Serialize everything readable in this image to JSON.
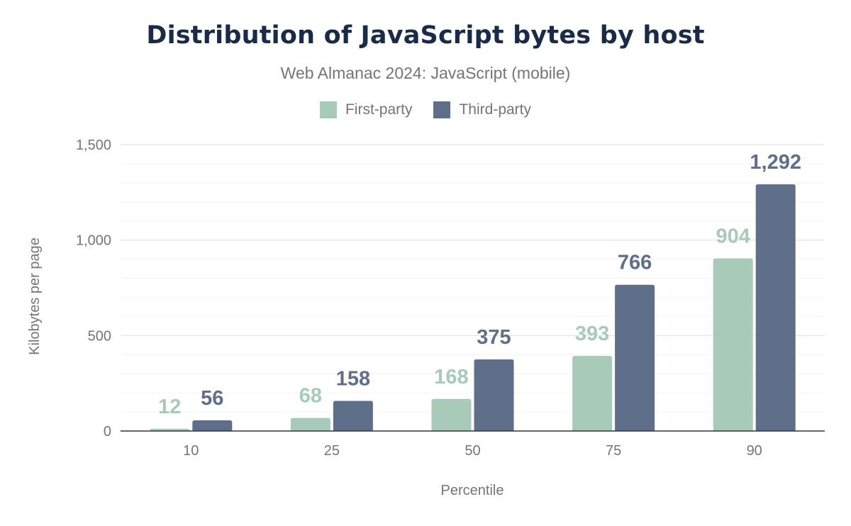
{
  "chart_data": {
    "type": "bar",
    "title": "Distribution of JavaScript bytes by host",
    "subtitle": "Web Almanac 2024: JavaScript (mobile)",
    "xlabel": "Percentile",
    "ylabel": "Kilobytes per page",
    "categories": [
      "10",
      "25",
      "50",
      "75",
      "90"
    ],
    "series": [
      {
        "name": "First-party",
        "color": "#a8cab9",
        "values": [
          12,
          68,
          168,
          393,
          904
        ],
        "labels": [
          "12",
          "68",
          "168",
          "393",
          "904"
        ]
      },
      {
        "name": "Third-party",
        "color": "#5f6e89",
        "values": [
          56,
          158,
          375,
          766,
          1292
        ],
        "labels": [
          "56",
          "158",
          "375",
          "766",
          "1,292"
        ]
      }
    ],
    "ylim": [
      0,
      1500
    ],
    "yticks": [
      0,
      500,
      1000,
      1500
    ],
    "ytick_labels": [
      "0",
      "500",
      "1,000",
      "1,500"
    ],
    "grid": true,
    "legend_position": "top"
  }
}
